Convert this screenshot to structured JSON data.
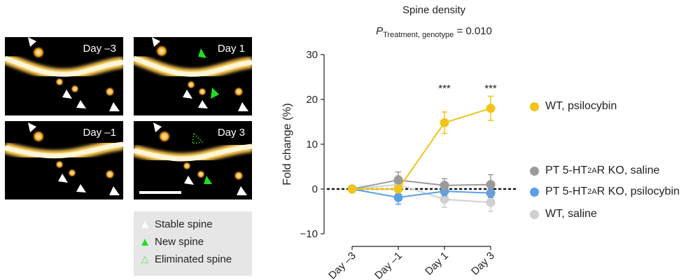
{
  "panels": [
    {
      "label": "Day –3"
    },
    {
      "label": "Day 1"
    },
    {
      "label": "Day –1"
    },
    {
      "label": "Day 3"
    }
  ],
  "spine_legend": {
    "stable": "Stable spine",
    "new": "New spine",
    "eliminated": "Eliminated spine"
  },
  "colors": {
    "wt_psilocybin": "#f0c419",
    "ko_saline": "#9a9a9a",
    "ko_psilocybin": "#5aa0e6",
    "wt_saline": "#d0d0d0",
    "new_spine": "#22dd22"
  },
  "chart_data": {
    "type": "line",
    "title": "Spine density",
    "stat_text": {
      "p": "P",
      "sub": "Treatment, genotype",
      "value": " = 0.010"
    },
    "ylabel": "Fold change (%)",
    "xlabel": "",
    "categories": [
      "Day –3",
      "Day –1",
      "Day 1",
      "Day 3"
    ],
    "ylim": [
      -10,
      30
    ],
    "yticks": [
      "30",
      "20",
      "10",
      "0",
      "−10"
    ],
    "ytick_values": [
      30,
      20,
      10,
      0,
      -10
    ],
    "significance": [
      {
        "category": "Day 1",
        "label": "***"
      },
      {
        "category": "Day 3",
        "label": "***"
      }
    ],
    "series": [
      {
        "name": "WT, saline",
        "values": [
          0,
          1.0,
          -2.3,
          -3.0
        ],
        "err": [
          0,
          2.0,
          1.8,
          2.0
        ],
        "color": "#d0d0d0"
      },
      {
        "name_main": "PT 5-HT",
        "name_sub": "2A",
        "name_tail": "R KO, psilocybin",
        "values": [
          0,
          -1.9,
          -0.5,
          -0.9
        ],
        "err": [
          0,
          1.5,
          1.0,
          1.0
        ],
        "color": "#5aa0e6"
      },
      {
        "name_main": "PT 5-HT",
        "name_sub": "2A",
        "name_tail": "R KO, saline",
        "values": [
          0,
          2.0,
          0.8,
          1.0
        ],
        "err": [
          0,
          1.8,
          1.5,
          2.2
        ],
        "color": "#9a9a9a"
      },
      {
        "name": "WT, psilocybin",
        "values": [
          0,
          0,
          14.8,
          18.0
        ],
        "err": [
          0,
          0.5,
          2.4,
          2.7
        ],
        "color": "#f0c419"
      }
    ]
  }
}
